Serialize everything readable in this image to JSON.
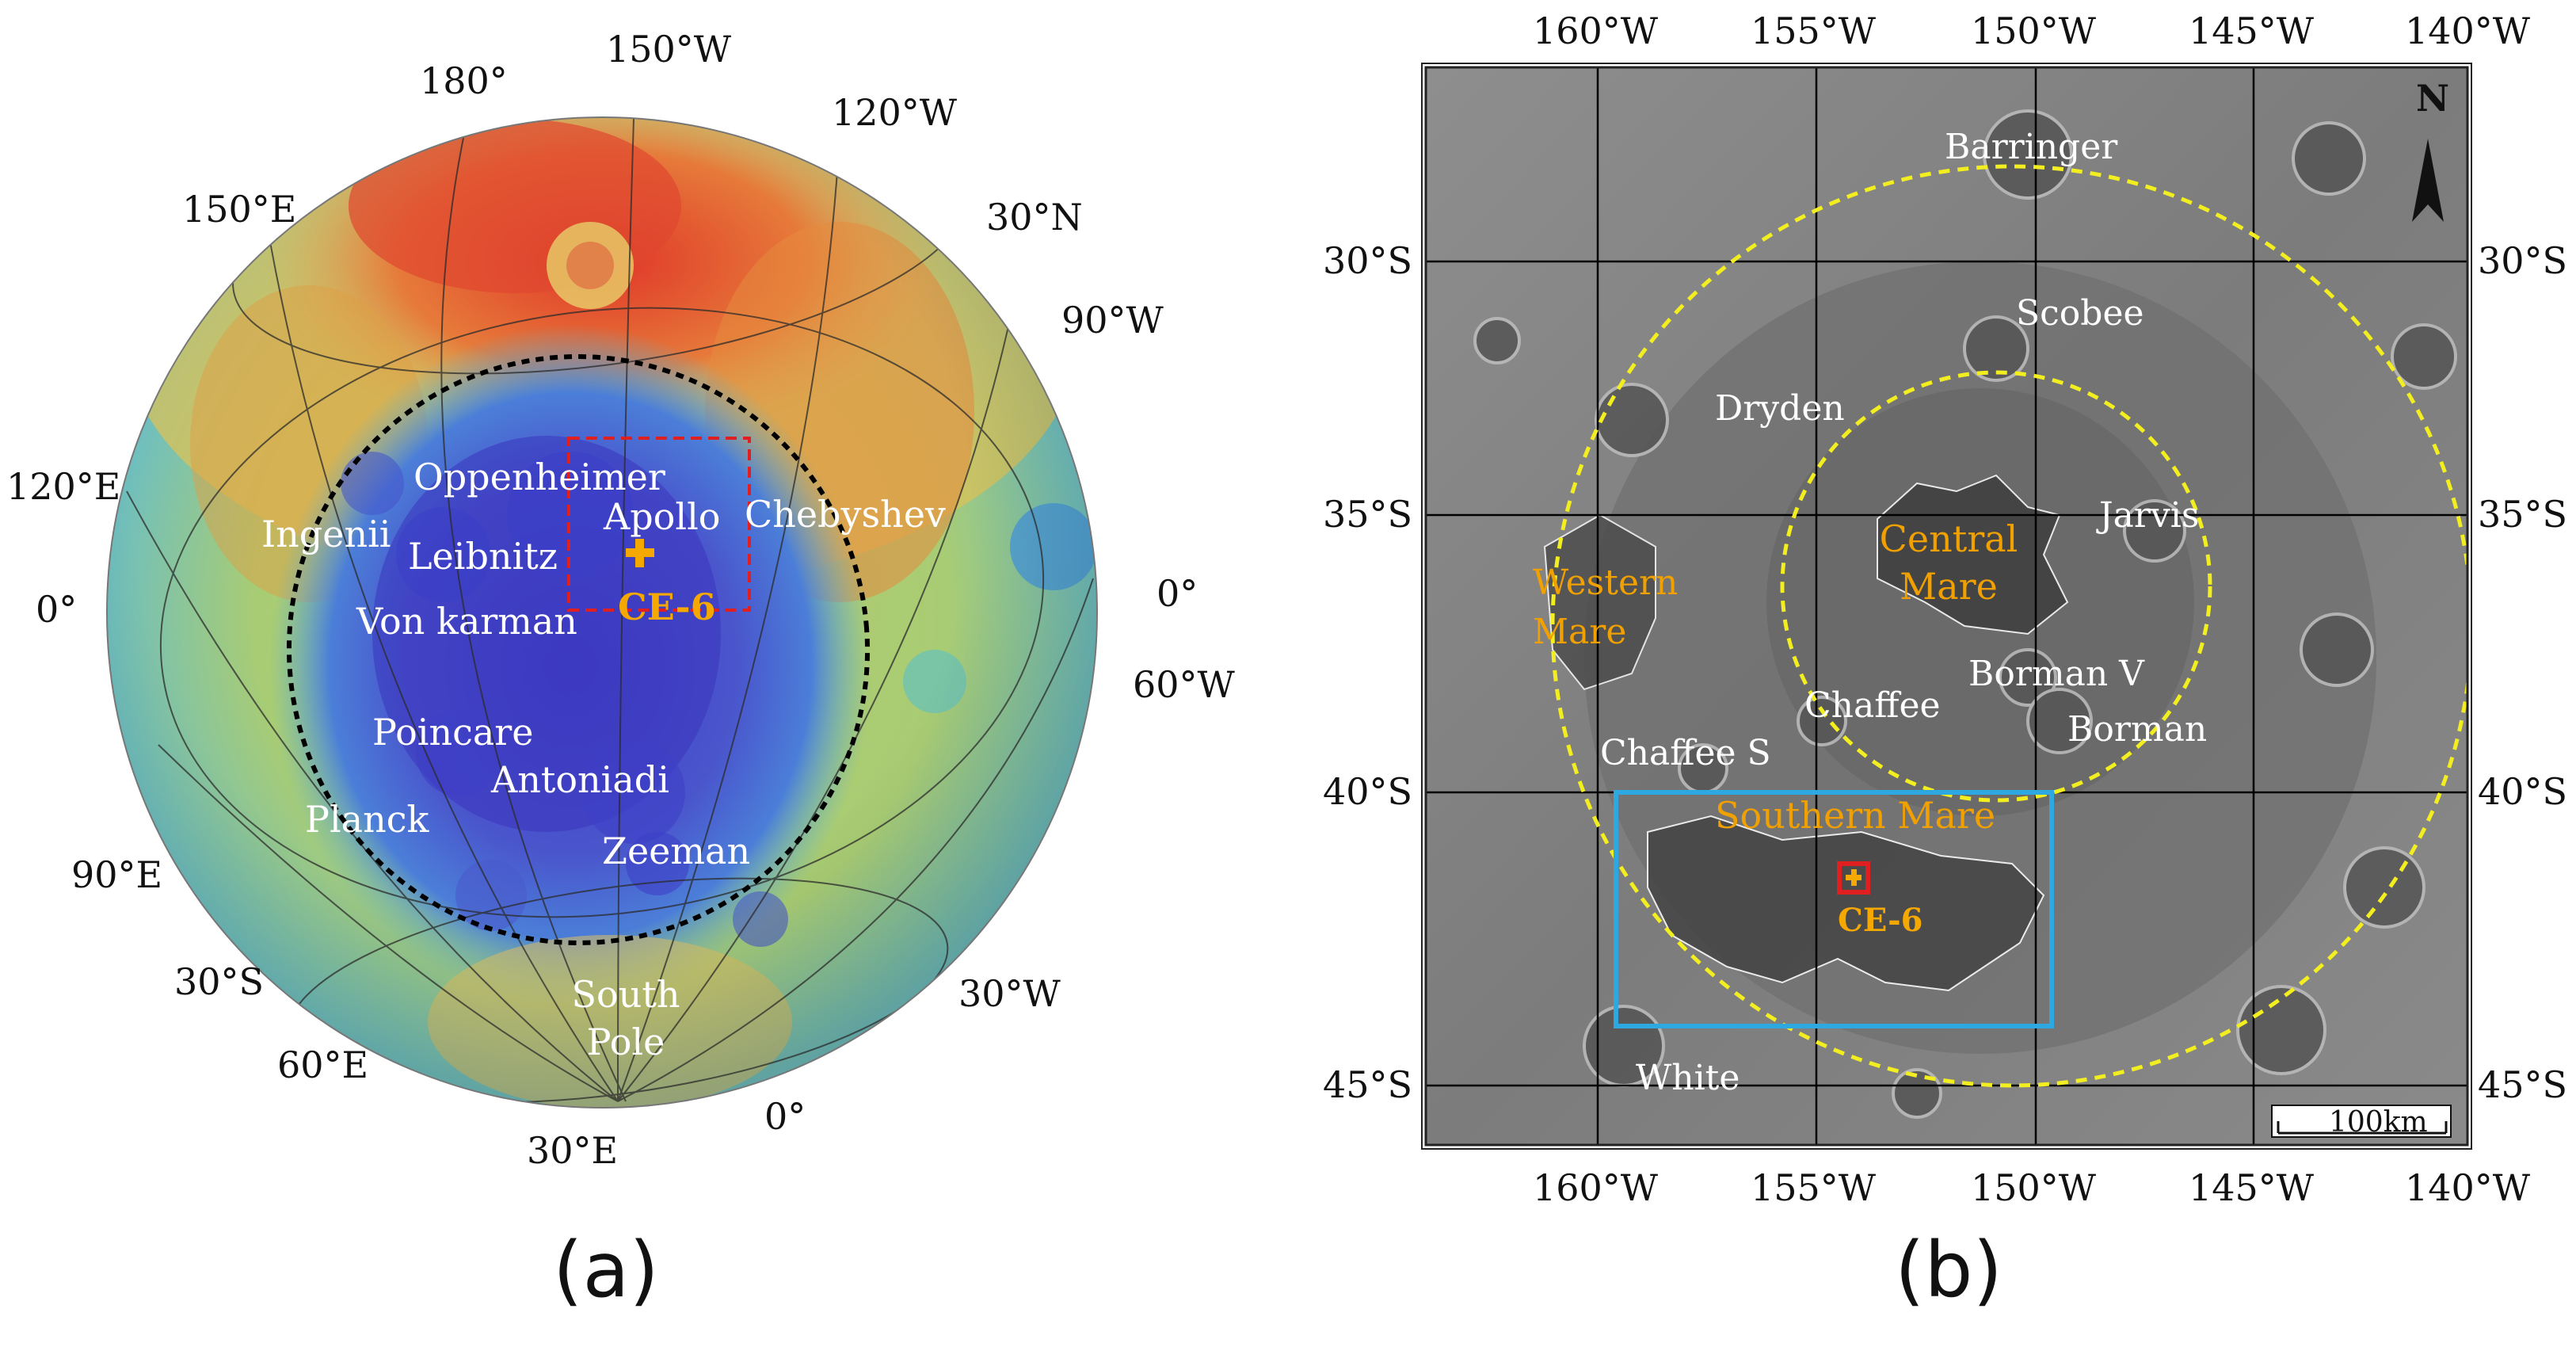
{
  "panel_a": {
    "caption": "(a)",
    "longitude_labels": [
      "180°",
      "150°W",
      "120°W",
      "150°E",
      "90°W",
      "120°E",
      "60°W",
      "90°E",
      "30°W",
      "60°E",
      "30°E",
      "0°",
      "0°",
      "0°"
    ],
    "latitude_labels": [
      "30°N",
      "30°S"
    ],
    "features": [
      "Oppenheimer",
      "Apollo",
      "Chebyshev",
      "Ingenii",
      "Leibnitz",
      "Von karman",
      "Poincare",
      "Antoniadi",
      "Planck",
      "Zeeman",
      "South Pole"
    ],
    "site_label": "CE-6"
  },
  "panel_b": {
    "caption": "(b)",
    "top_axis_labels": [
      "160°W",
      "155°W",
      "150°W",
      "145°W",
      "140°W"
    ],
    "bottom_axis_labels": [
      "160°W",
      "155°W",
      "150°W",
      "145°W",
      "140°W"
    ],
    "left_axis_labels": [
      "30°S",
      "35°S",
      "40°S",
      "45°S"
    ],
    "right_axis_labels": [
      "30°S",
      "35°S",
      "40°S",
      "45°S"
    ],
    "features": [
      "Barringer",
      "Scobee",
      "Dryden",
      "Jarvis",
      "Borman V",
      "Chaffee",
      "Borman",
      "Chaffee S",
      "White"
    ],
    "mare_labels": [
      "Central Mare",
      "Western Mare",
      "Southern Mare"
    ],
    "site_label": "CE-6",
    "north_label": "N",
    "scale_bar": "100km"
  },
  "colors": {
    "site_marker": "#f5a800",
    "mare_label": "#f0a000",
    "boundary_dashed_a": "#000000",
    "ring_dashed_b": "#f2ee20",
    "study_box": "#2ea8e0",
    "site_box": "#e02020",
    "red_box_a": "#e02020"
  }
}
